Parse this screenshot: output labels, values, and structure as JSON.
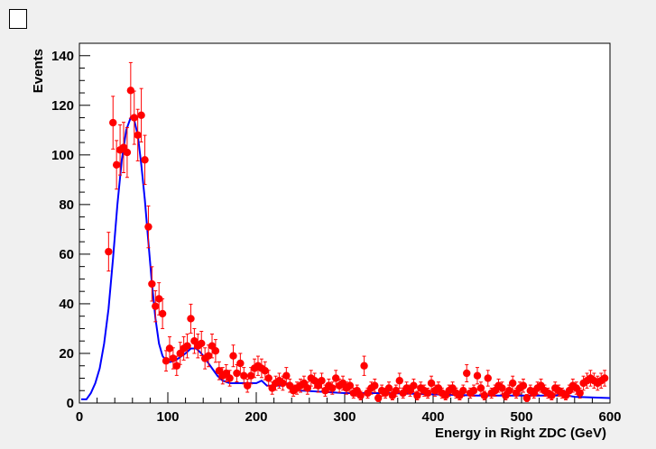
{
  "chart_data": {
    "type": "scatter",
    "xlabel": "Energy in Right ZDC (GeV)",
    "ylabel": "Events",
    "xlim": [
      0,
      600
    ],
    "ylim": [
      0,
      145
    ],
    "x_ticks": [
      0,
      100,
      200,
      300,
      400,
      500,
      600
    ],
    "y_ticks": [
      0,
      20,
      40,
      60,
      80,
      100,
      120,
      140
    ],
    "grid": false,
    "colors": {
      "points": "#ff0000",
      "errors": "#ff0000",
      "fit": "#0000ff",
      "frame": "#000000",
      "plot_bg": "#ffffff",
      "page_bg": "#f0f0f0"
    },
    "series": [
      {
        "kind": "data-with-errors",
        "points": [
          [
            33,
            61
          ],
          [
            38,
            113
          ],
          [
            42,
            96
          ],
          [
            46,
            102
          ],
          [
            50,
            103
          ],
          [
            54,
            101
          ],
          [
            58,
            126
          ],
          [
            62,
            115
          ],
          [
            66,
            108
          ],
          [
            70,
            116
          ],
          [
            74,
            98
          ],
          [
            78,
            71
          ],
          [
            82,
            48
          ],
          [
            86,
            39
          ],
          [
            90,
            42
          ],
          [
            94,
            36
          ],
          [
            98,
            17
          ],
          [
            102,
            22
          ],
          [
            106,
            18
          ],
          [
            110,
            15
          ],
          [
            114,
            20
          ],
          [
            118,
            22
          ],
          [
            122,
            23
          ],
          [
            126,
            34
          ],
          [
            130,
            25
          ],
          [
            134,
            23
          ],
          [
            138,
            24
          ],
          [
            142,
            18
          ],
          [
            146,
            19
          ],
          [
            150,
            23
          ],
          [
            154,
            21
          ],
          [
            158,
            13
          ],
          [
            162,
            11
          ],
          [
            166,
            12
          ],
          [
            170,
            10
          ],
          [
            174,
            19
          ],
          [
            178,
            12
          ],
          [
            182,
            16
          ],
          [
            186,
            11
          ],
          [
            190,
            7
          ],
          [
            194,
            11
          ],
          [
            198,
            14
          ],
          [
            202,
            15
          ],
          [
            206,
            14
          ],
          [
            210,
            13
          ],
          [
            214,
            10
          ],
          [
            218,
            6
          ],
          [
            222,
            8
          ],
          [
            226,
            9
          ],
          [
            230,
            8
          ],
          [
            234,
            11
          ],
          [
            238,
            7
          ],
          [
            242,
            5
          ],
          [
            246,
            6
          ],
          [
            250,
            7
          ],
          [
            254,
            8
          ],
          [
            258,
            6
          ],
          [
            262,
            10
          ],
          [
            266,
            9
          ],
          [
            270,
            7
          ],
          [
            274,
            9
          ],
          [
            278,
            5
          ],
          [
            282,
            7
          ],
          [
            286,
            6
          ],
          [
            290,
            10
          ],
          [
            294,
            7
          ],
          [
            298,
            8
          ],
          [
            302,
            6
          ],
          [
            306,
            7
          ],
          [
            310,
            4
          ],
          [
            314,
            5
          ],
          [
            318,
            3
          ],
          [
            322,
            15
          ],
          [
            326,
            4
          ],
          [
            330,
            6
          ],
          [
            334,
            7
          ],
          [
            338,
            2
          ],
          [
            342,
            5
          ],
          [
            346,
            4
          ],
          [
            350,
            6
          ],
          [
            354,
            3
          ],
          [
            358,
            5
          ],
          [
            362,
            9
          ],
          [
            366,
            4
          ],
          [
            370,
            6
          ],
          [
            374,
            5
          ],
          [
            378,
            7
          ],
          [
            382,
            3
          ],
          [
            386,
            6
          ],
          [
            390,
            5
          ],
          [
            394,
            4
          ],
          [
            398,
            8
          ],
          [
            402,
            5
          ],
          [
            406,
            6
          ],
          [
            410,
            4
          ],
          [
            414,
            3
          ],
          [
            418,
            5
          ],
          [
            422,
            6
          ],
          [
            426,
            4
          ],
          [
            430,
            3
          ],
          [
            434,
            5
          ],
          [
            438,
            12
          ],
          [
            442,
            4
          ],
          [
            446,
            5
          ],
          [
            450,
            11
          ],
          [
            454,
            6
          ],
          [
            458,
            3
          ],
          [
            462,
            10
          ],
          [
            466,
            4
          ],
          [
            470,
            5
          ],
          [
            474,
            7
          ],
          [
            478,
            6
          ],
          [
            482,
            3
          ],
          [
            486,
            5
          ],
          [
            490,
            8
          ],
          [
            494,
            4
          ],
          [
            498,
            6
          ],
          [
            502,
            7
          ],
          [
            506,
            2
          ],
          [
            510,
            5
          ],
          [
            514,
            4
          ],
          [
            518,
            6
          ],
          [
            522,
            7
          ],
          [
            526,
            5
          ],
          [
            530,
            4
          ],
          [
            534,
            3
          ],
          [
            538,
            6
          ],
          [
            542,
            5
          ],
          [
            546,
            4
          ],
          [
            550,
            3
          ],
          [
            554,
            5
          ],
          [
            558,
            7
          ],
          [
            562,
            6
          ],
          [
            566,
            4
          ],
          [
            570,
            8
          ],
          [
            574,
            9
          ],
          [
            578,
            10
          ],
          [
            582,
            9
          ],
          [
            586,
            8
          ],
          [
            590,
            9
          ],
          [
            594,
            10
          ]
        ]
      },
      {
        "kind": "fit-curve",
        "points": [
          [
            2,
            1.5
          ],
          [
            8,
            1.5
          ],
          [
            13,
            4
          ],
          [
            18,
            8
          ],
          [
            23,
            14
          ],
          [
            28,
            24
          ],
          [
            33,
            38
          ],
          [
            38,
            58
          ],
          [
            43,
            80
          ],
          [
            48,
            98
          ],
          [
            53,
            110
          ],
          [
            58,
            115
          ],
          [
            62,
            114
          ],
          [
            66,
            108
          ],
          [
            70,
            96
          ],
          [
            74,
            82
          ],
          [
            78,
            65
          ],
          [
            82,
            48
          ],
          [
            86,
            34
          ],
          [
            90,
            24
          ],
          [
            94,
            19
          ],
          [
            98,
            17
          ],
          [
            102,
            16.5
          ],
          [
            108,
            17
          ],
          [
            114,
            18.5
          ],
          [
            120,
            20
          ],
          [
            126,
            22
          ],
          [
            132,
            22
          ],
          [
            138,
            20
          ],
          [
            144,
            17
          ],
          [
            150,
            14
          ],
          [
            156,
            11
          ],
          [
            162,
            9
          ],
          [
            170,
            8
          ],
          [
            180,
            8
          ],
          [
            190,
            8
          ],
          [
            200,
            8
          ],
          [
            206,
            9
          ],
          [
            212,
            7
          ],
          [
            220,
            7
          ],
          [
            230,
            7
          ],
          [
            236,
            8
          ],
          [
            240,
            7
          ],
          [
            250,
            5
          ],
          [
            300,
            4
          ],
          [
            350,
            4
          ],
          [
            400,
            3.5
          ],
          [
            450,
            3
          ],
          [
            500,
            3
          ],
          [
            540,
            3
          ],
          [
            548,
            5
          ],
          [
            552,
            3
          ],
          [
            560,
            2.5
          ],
          [
            600,
            2
          ]
        ]
      }
    ]
  }
}
